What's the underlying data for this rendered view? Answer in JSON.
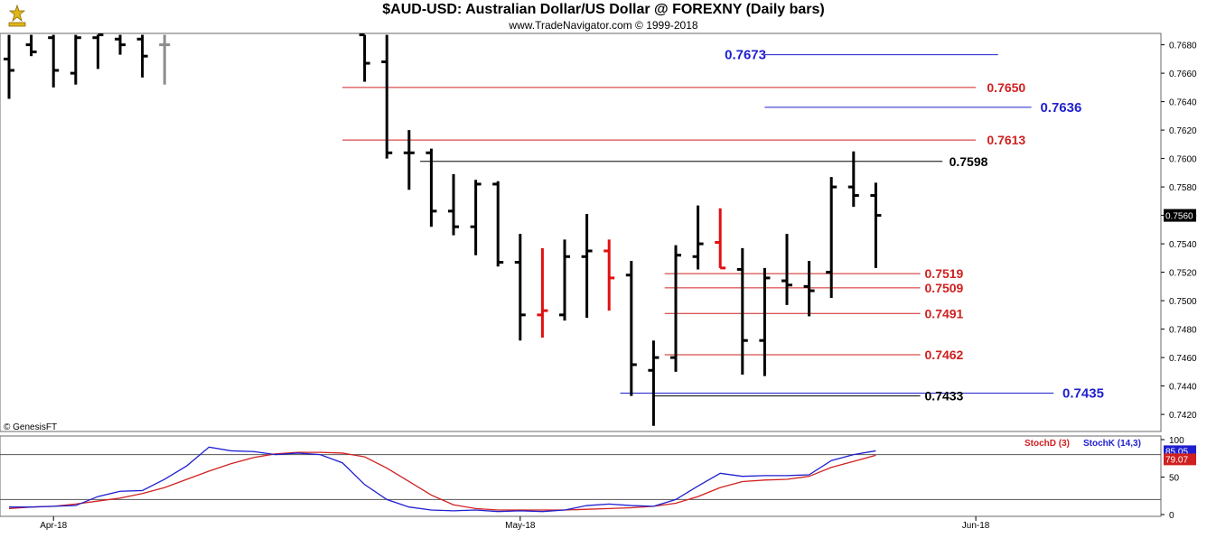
{
  "header": {
    "title": "$AUD-USD:  Australian Dollar/US Dollar @ FOREXNY  (Daily bars)",
    "subtitle": "www.TradeNavigator.com © 1999-2018",
    "vendor_note": "© GenesisFT"
  },
  "chart_data": [
    {
      "type": "ohlc",
      "ylim": [
        0.7408,
        0.7688
      ],
      "yticks": [
        "0.7420",
        "0.7440",
        "0.7460",
        "0.7480",
        "0.7500",
        "0.7520",
        "0.7540",
        "0.7560",
        "0.7580",
        "0.7600",
        "0.7620",
        "0.7640",
        "0.7660",
        "0.7680"
      ],
      "xticks": [
        {
          "label": "Apr-18",
          "idx": 2
        },
        {
          "label": "May-18",
          "idx": 23
        },
        {
          "label": "Jun-18",
          "idx": 43.5
        }
      ],
      "last_price": "0.7560",
      "bars": [
        {
          "idx": 0,
          "o": 0.767,
          "h": 0.7687,
          "l": 0.7642,
          "c": 0.7662,
          "color": "black"
        },
        {
          "idx": 1,
          "o": 0.768,
          "h": 0.7687,
          "l": 0.7672,
          "c": 0.7675,
          "color": "black"
        },
        {
          "idx": 2,
          "o": 0.7685,
          "h": 0.7687,
          "l": 0.765,
          "c": 0.7662,
          "color": "black"
        },
        {
          "idx": 3,
          "o": 0.766,
          "h": 0.7687,
          "l": 0.7652,
          "c": 0.7685,
          "color": "black"
        },
        {
          "idx": 4,
          "o": 0.7685,
          "h": 0.7687,
          "l": 0.7663,
          "c": 0.7687,
          "color": "black"
        },
        {
          "idx": 5,
          "o": 0.7684,
          "h": 0.7687,
          "l": 0.7673,
          "c": 0.768,
          "color": "black"
        },
        {
          "idx": 6,
          "o": 0.7684,
          "h": 0.7687,
          "l": 0.7657,
          "c": 0.7672,
          "color": "black"
        },
        {
          "idx": 7,
          "o": 0.768,
          "h": 0.7687,
          "l": 0.7652,
          "c": 0.768,
          "color": "gray"
        },
        {
          "idx": 16,
          "o": 0.7687,
          "h": 0.7687,
          "l": 0.7654,
          "c": 0.7667,
          "color": "black"
        },
        {
          "idx": 17,
          "o": 0.7668,
          "h": 0.7687,
          "l": 0.76,
          "c": 0.7604,
          "color": "black"
        },
        {
          "idx": 18,
          "o": 0.7604,
          "h": 0.762,
          "l": 0.7578,
          "c": 0.7604,
          "color": "black"
        },
        {
          "idx": 19,
          "o": 0.7604,
          "h": 0.7607,
          "l": 0.7552,
          "c": 0.7563,
          "color": "black"
        },
        {
          "idx": 20,
          "o": 0.7563,
          "h": 0.7589,
          "l": 0.7546,
          "c": 0.7552,
          "color": "black"
        },
        {
          "idx": 21,
          "o": 0.7552,
          "h": 0.7585,
          "l": 0.7532,
          "c": 0.7582,
          "color": "black"
        },
        {
          "idx": 22,
          "o": 0.7582,
          "h": 0.7584,
          "l": 0.7524,
          "c": 0.7527,
          "color": "black"
        },
        {
          "idx": 23,
          "o": 0.7527,
          "h": 0.7547,
          "l": 0.7472,
          "c": 0.749,
          "color": "black"
        },
        {
          "idx": 24,
          "o": 0.749,
          "h": 0.7537,
          "l": 0.7474,
          "c": 0.7493,
          "color": "red"
        },
        {
          "idx": 25,
          "o": 0.749,
          "h": 0.7543,
          "l": 0.7486,
          "c": 0.7531,
          "color": "black"
        },
        {
          "idx": 26,
          "o": 0.7531,
          "h": 0.7561,
          "l": 0.7488,
          "c": 0.7535,
          "color": "black"
        },
        {
          "idx": 27,
          "o": 0.7535,
          "h": 0.7543,
          "l": 0.7493,
          "c": 0.7516,
          "color": "red"
        },
        {
          "idx": 28,
          "o": 0.7518,
          "h": 0.7528,
          "l": 0.7433,
          "c": 0.7455,
          "color": "black"
        },
        {
          "idx": 29,
          "o": 0.7451,
          "h": 0.7472,
          "l": 0.7412,
          "c": 0.746,
          "color": "black"
        },
        {
          "idx": 30,
          "o": 0.746,
          "h": 0.7539,
          "l": 0.745,
          "c": 0.7532,
          "color": "black"
        },
        {
          "idx": 31,
          "o": 0.7531,
          "h": 0.7567,
          "l": 0.7522,
          "c": 0.754,
          "color": "black"
        },
        {
          "idx": 32,
          "o": 0.7541,
          "h": 0.7565,
          "l": 0.7523,
          "c": 0.7523,
          "color": "red"
        },
        {
          "idx": 33,
          "o": 0.7522,
          "h": 0.7537,
          "l": 0.7448,
          "c": 0.7472,
          "color": "black"
        },
        {
          "idx": 34,
          "o": 0.7472,
          "h": 0.7523,
          "l": 0.7447,
          "c": 0.7516,
          "color": "black"
        },
        {
          "idx": 35,
          "o": 0.7514,
          "h": 0.7547,
          "l": 0.7497,
          "c": 0.7511,
          "color": "black"
        },
        {
          "idx": 36,
          "o": 0.751,
          "h": 0.7528,
          "l": 0.7489,
          "c": 0.7507,
          "color": "black"
        },
        {
          "idx": 37,
          "o": 0.752,
          "h": 0.7587,
          "l": 0.7502,
          "c": 0.758,
          "color": "black"
        },
        {
          "idx": 38,
          "o": 0.758,
          "h": 0.7605,
          "l": 0.7566,
          "c": 0.7574,
          "color": "black"
        },
        {
          "idx": 39,
          "o": 0.7574,
          "h": 0.7583,
          "l": 0.7523,
          "c": 0.756,
          "color": "black"
        }
      ],
      "levels": [
        {
          "label": "0.7673",
          "value": 0.7673,
          "color": "#1f1fd0",
          "from": 34,
          "to": 44.5,
          "label_at": 32.2,
          "size": 15
        },
        {
          "label": "0.7650",
          "value": 0.765,
          "color": "#d02020",
          "from": 15,
          "to": 43.5,
          "label_at": 44,
          "size": 14
        },
        {
          "label": "0.7636",
          "value": 0.7636,
          "color": "#1f1fd0",
          "from": 34,
          "to": 46,
          "label_at": 46.4,
          "size": 15
        },
        {
          "label": "0.7613",
          "value": 0.7613,
          "color": "#d02020",
          "from": 15,
          "to": 43.5,
          "label_at": 44,
          "size": 14
        },
        {
          "label": "0.7598",
          "value": 0.7598,
          "color": "#000000",
          "from": 18.5,
          "to": 42,
          "label_at": 42.3,
          "size": 14
        },
        {
          "label": "0.7519",
          "value": 0.7519,
          "color": "#d02020",
          "from": 29.5,
          "to": 41,
          "label_at": 41.2,
          "size": 14
        },
        {
          "label": "0.7509",
          "value": 0.7509,
          "color": "#d02020",
          "from": 29.5,
          "to": 41,
          "label_at": 41.2,
          "size": 14
        },
        {
          "label": "0.7491",
          "value": 0.7491,
          "color": "#d02020",
          "from": 29.5,
          "to": 41,
          "label_at": 41.2,
          "size": 14
        },
        {
          "label": "0.7462",
          "value": 0.7462,
          "color": "#d02020",
          "from": 29.5,
          "to": 41,
          "label_at": 41.2,
          "size": 14
        },
        {
          "label": "0.7435",
          "value": 0.7435,
          "color": "#1f1fd0",
          "from": 27.5,
          "to": 47,
          "label_at": 47.4,
          "size": 15
        },
        {
          "label": "0.7433",
          "value": 0.7433,
          "color": "#000000",
          "from": 29,
          "to": 41,
          "label_at": 41.2,
          "size": 14
        }
      ]
    },
    {
      "type": "line",
      "ylim": [
        0,
        100
      ],
      "yticks": [
        "0",
        "50",
        "100"
      ],
      "reference_lines": [
        80,
        20
      ],
      "last_values": [
        "85.05",
        "79.07"
      ],
      "legend": [
        {
          "name": "StochD (3)",
          "color": "#d02020"
        },
        {
          "name": "StochK (14,3)",
          "color": "#1f1fd0"
        }
      ],
      "x": [
        0,
        1,
        2,
        3,
        4,
        5,
        6,
        7,
        8,
        9,
        10,
        11,
        12,
        13,
        14,
        15,
        16,
        17,
        18,
        19,
        20,
        21,
        22,
        23,
        24,
        25,
        26,
        27,
        28,
        29,
        30,
        31,
        32,
        33,
        34,
        35,
        36,
        37,
        38,
        39
      ],
      "series": [
        {
          "name": "StochD (3)",
          "color": "#d02020",
          "values": [
            8,
            10,
            11,
            14,
            18,
            22,
            28,
            36,
            47,
            58,
            68,
            76,
            81,
            83,
            83,
            82,
            77,
            62,
            44,
            26,
            13,
            8,
            6,
            6,
            6,
            6,
            7,
            8,
            9,
            11,
            15,
            24,
            36,
            44,
            46,
            47,
            51,
            63,
            71,
            79
          ]
        },
        {
          "name": "StochK (14,3)",
          "color": "#1f1fd0",
          "values": [
            10,
            10,
            11,
            12,
            24,
            31,
            32,
            47,
            65,
            90,
            85,
            84,
            80,
            82,
            80,
            69,
            40,
            20,
            10,
            6,
            5,
            6,
            4,
            5,
            4,
            6,
            12,
            14,
            12,
            11,
            20,
            38,
            55,
            51,
            52,
            52,
            53,
            72,
            80,
            85
          ]
        }
      ]
    }
  ]
}
